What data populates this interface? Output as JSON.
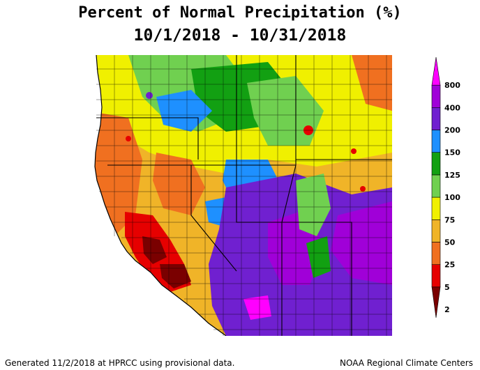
{
  "title": "Percent of Normal Precipitation (%)",
  "subtitle": "10/1/2018 - 10/31/2018",
  "footer_left": "Generated 11/2/2018 at HPRCC using provisional data.",
  "footer_right": "NOAA Regional Climate Centers",
  "legend": {
    "labels": [
      "800",
      "400",
      "200",
      "150",
      "125",
      "100",
      "75",
      "50",
      "25",
      "5",
      "2"
    ],
    "bands": [
      {
        "color": "#7a0000",
        "from": "2",
        "to": "5"
      },
      {
        "color": "#e60000",
        "from": "5",
        "to": "25"
      },
      {
        "color": "#f07020",
        "from": "25",
        "to": "50"
      },
      {
        "color": "#f0b428",
        "from": "50",
        "to": "75"
      },
      {
        "color": "#f0f000",
        "from": "75",
        "to": "100"
      },
      {
        "color": "#70d050",
        "from": "100",
        "to": "125"
      },
      {
        "color": "#12a012",
        "from": "125",
        "to": "150"
      },
      {
        "color": "#1e90ff",
        "from": "150",
        "to": "200"
      },
      {
        "color": "#7020d0",
        "from": "200",
        "to": "400"
      },
      {
        "color": "#a000d8",
        "from": "400",
        "to": "800"
      },
      {
        "color": "#ff00ff",
        "from": "800",
        "to": ""
      }
    ]
  },
  "colors": {
    "red_dark": "#7a0000",
    "red": "#e60000",
    "orange": "#f07020",
    "tan": "#f0b428",
    "yellow": "#f0f000",
    "light_green": "#70d050",
    "green": "#12a012",
    "blue": "#1e90ff",
    "violet": "#7020d0",
    "purple": "#a000d8",
    "magenta": "#ff00ff"
  }
}
